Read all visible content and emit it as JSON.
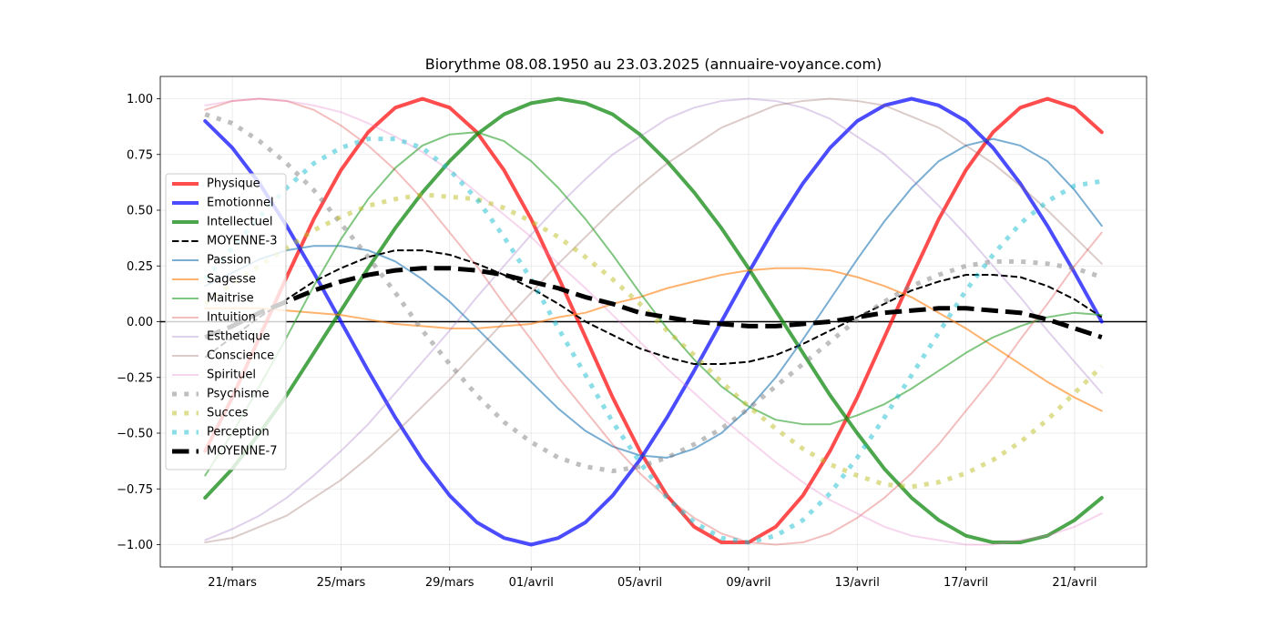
{
  "chart_data": {
    "type": "line",
    "title": "Biorythme 08.08.1950 au 23.03.2025 (annuaire-voyance.com)",
    "categories": [
      null,
      "21/mars",
      null,
      null,
      null,
      "25/mars",
      null,
      null,
      null,
      "29/mars",
      null,
      null,
      "01/avril",
      null,
      null,
      null,
      "05/avril",
      null,
      null,
      null,
      "09/avril",
      null,
      null,
      null,
      "13/avril",
      null,
      null,
      null,
      "17/avril",
      null,
      null,
      null,
      "21/avril",
      null
    ],
    "ylim": [
      -1.1,
      1.1
    ],
    "yticks": [
      {
        "value": -1,
        "label": "−1.00"
      },
      {
        "value": -0.75,
        "label": "−0.75"
      },
      {
        "value": -0.5,
        "label": "−0.50"
      },
      {
        "value": -0.25,
        "label": "−0.25"
      },
      {
        "value": 0,
        "label": "0.00"
      },
      {
        "value": 0.25,
        "label": "0.25"
      },
      {
        "value": 0.5,
        "label": "0.50"
      },
      {
        "value": 0.75,
        "label": "0.75"
      },
      {
        "value": 1,
        "label": "1.00"
      }
    ],
    "grid": true,
    "hline": 0,
    "legend": "center left",
    "series": [
      {
        "name": "Physique",
        "color": "#ff0000",
        "opacity": 0.7,
        "width": 4,
        "dash": "solid",
        "values": [
          -0.58,
          -0.34,
          -0.07,
          0.2,
          0.46,
          0.68,
          0.85,
          0.96,
          1,
          0.96,
          0.85,
          0.68,
          0.46,
          0.2,
          -0.07,
          -0.34,
          -0.58,
          -0.78,
          -0.92,
          -0.99,
          -0.99,
          -0.92,
          -0.78,
          -0.58,
          -0.34,
          -0.07,
          0.2,
          0.46,
          0.68,
          0.85,
          0.96,
          1,
          0.96,
          0.85
        ]
      },
      {
        "name": "Emotionnel",
        "color": "#0000ff",
        "opacity": 0.7,
        "width": 4,
        "dash": "solid",
        "values": [
          0.9,
          0.78,
          0.62,
          0.43,
          0.22,
          0,
          -0.22,
          -0.43,
          -0.62,
          -0.78,
          -0.9,
          -0.97,
          -1,
          -0.97,
          -0.9,
          -0.78,
          -0.62,
          -0.43,
          -0.22,
          0,
          0.22,
          0.43,
          0.62,
          0.78,
          0.9,
          0.97,
          1,
          0.97,
          0.9,
          0.78,
          0.62,
          0.43,
          0.22,
          0
        ]
      },
      {
        "name": "Intellectuel",
        "color": "#008000",
        "opacity": 0.7,
        "width": 4,
        "dash": "solid",
        "values": [
          -0.79,
          -0.66,
          -0.5,
          -0.33,
          -0.14,
          0.05,
          0.24,
          0.42,
          0.58,
          0.72,
          0.84,
          0.93,
          0.98,
          1,
          0.98,
          0.93,
          0.84,
          0.72,
          0.58,
          0.42,
          0.24,
          0.05,
          -0.14,
          -0.33,
          -0.5,
          -0.66,
          -0.79,
          -0.89,
          -0.96,
          -0.99,
          -0.99,
          -0.96,
          -0.89,
          -0.79
        ]
      },
      {
        "name": "MOYENNE-3",
        "color": "#000000",
        "opacity": 1,
        "width": 2,
        "dash": "dashed",
        "values": [
          -0.16,
          -0.07,
          0.02,
          0.1,
          0.18,
          0.24,
          0.29,
          0.32,
          0.32,
          0.3,
          0.26,
          0.21,
          0.15,
          0.08,
          0,
          -0.06,
          -0.12,
          -0.16,
          -0.19,
          -0.19,
          -0.18,
          -0.15,
          -0.1,
          -0.04,
          0.02,
          0.08,
          0.14,
          0.18,
          0.21,
          0.21,
          0.2,
          0.16,
          0.1,
          0.02
        ]
      },
      {
        "name": "Passion",
        "color": "#1f77b4",
        "opacity": 0.6,
        "width": 2,
        "dash": "solid",
        "values": [
          0.16,
          0.22,
          0.28,
          0.32,
          0.34,
          0.34,
          0.32,
          0.27,
          0.19,
          0.09,
          -0.03,
          -0.15,
          -0.27,
          -0.39,
          -0.49,
          -0.56,
          -0.6,
          -0.61,
          -0.57,
          -0.5,
          -0.39,
          -0.25,
          -0.08,
          0.1,
          0.28,
          0.45,
          0.6,
          0.72,
          0.79,
          0.82,
          0.79,
          0.72,
          0.59,
          0.43
        ]
      },
      {
        "name": "Sagesse",
        "color": "#ff7f0e",
        "opacity": 0.6,
        "width": 2,
        "dash": "solid",
        "values": [
          0.06,
          0.06,
          0.06,
          0.05,
          0.04,
          0.03,
          0.01,
          -0.01,
          -0.02,
          -0.03,
          -0.03,
          -0.02,
          -0.01,
          0.02,
          0.04,
          0.08,
          0.11,
          0.15,
          0.18,
          0.21,
          0.23,
          0.24,
          0.24,
          0.23,
          0.2,
          0.16,
          0.11,
          0.04,
          -0.03,
          -0.11,
          -0.19,
          -0.27,
          -0.34,
          -0.4
        ]
      },
      {
        "name": "Maitrise",
        "color": "#2ca02c",
        "opacity": 0.6,
        "width": 2,
        "dash": "solid",
        "values": [
          -0.69,
          -0.5,
          -0.29,
          -0.07,
          0.16,
          0.37,
          0.55,
          0.69,
          0.79,
          0.84,
          0.85,
          0.81,
          0.72,
          0.6,
          0.46,
          0.3,
          0.13,
          -0.03,
          -0.17,
          -0.29,
          -0.38,
          -0.44,
          -0.46,
          -0.46,
          -0.42,
          -0.37,
          -0.3,
          -0.22,
          -0.14,
          -0.07,
          -0.02,
          0.02,
          0.04,
          0.03
        ]
      },
      {
        "name": "Intuition",
        "color": "#d62728",
        "opacity": 0.3,
        "width": 2,
        "dash": "solid",
        "values": [
          0.95,
          0.99,
          1,
          0.99,
          0.95,
          0.88,
          0.79,
          0.68,
          0.55,
          0.4,
          0.25,
          0.08,
          -0.08,
          -0.25,
          -0.4,
          -0.55,
          -0.68,
          -0.79,
          -0.88,
          -0.95,
          -0.99,
          -1,
          -0.99,
          -0.95,
          -0.88,
          -0.79,
          -0.68,
          -0.55,
          -0.4,
          -0.25,
          -0.08,
          0.08,
          0.25,
          0.4
        ]
      },
      {
        "name": "Esthetique",
        "color": "#9467bd",
        "opacity": 0.3,
        "width": 2,
        "dash": "solid",
        "values": [
          -0.98,
          -0.93,
          -0.87,
          -0.79,
          -0.69,
          -0.58,
          -0.46,
          -0.32,
          -0.18,
          -0.04,
          0.11,
          0.25,
          0.39,
          0.52,
          0.64,
          0.75,
          0.83,
          0.91,
          0.96,
          0.99,
          1,
          0.99,
          0.96,
          0.91,
          0.83,
          0.75,
          0.64,
          0.52,
          0.39,
          0.25,
          0.11,
          -0.04,
          -0.18,
          -0.32
        ]
      },
      {
        "name": "Conscience",
        "color": "#8c564b",
        "opacity": 0.3,
        "width": 2,
        "dash": "solid",
        "values": [
          -0.99,
          -0.97,
          -0.92,
          -0.87,
          -0.79,
          -0.71,
          -0.61,
          -0.5,
          -0.38,
          -0.26,
          -0.13,
          0,
          0.13,
          0.26,
          0.38,
          0.5,
          0.61,
          0.71,
          0.79,
          0.87,
          0.92,
          0.97,
          0.99,
          1,
          0.99,
          0.97,
          0.92,
          0.87,
          0.79,
          0.71,
          0.61,
          0.5,
          0.38,
          0.26
        ]
      },
      {
        "name": "Spirituel",
        "color": "#e377c2",
        "opacity": 0.3,
        "width": 2,
        "dash": "solid",
        "values": [
          0.97,
          0.99,
          1,
          0.99,
          0.97,
          0.94,
          0.89,
          0.83,
          0.76,
          0.68,
          0.58,
          0.48,
          0.38,
          0.26,
          0.15,
          0.03,
          -0.09,
          -0.21,
          -0.32,
          -0.43,
          -0.53,
          -0.63,
          -0.72,
          -0.8,
          -0.86,
          -0.92,
          -0.96,
          -0.98,
          -1,
          -1,
          -0.98,
          -0.96,
          -0.92,
          -0.86
        ]
      },
      {
        "name": "Psychisme",
        "color": "#7f7f7f",
        "opacity": 0.5,
        "width": 5,
        "dash": "dotted",
        "values": [
          0.93,
          0.89,
          0.81,
          0.71,
          0.59,
          0.44,
          0.29,
          0.13,
          -0.04,
          -0.19,
          -0.33,
          -0.45,
          -0.54,
          -0.61,
          -0.65,
          -0.67,
          -0.65,
          -0.61,
          -0.55,
          -0.48,
          -0.39,
          -0.29,
          -0.19,
          -0.09,
          0.01,
          0.09,
          0.16,
          0.21,
          0.25,
          0.27,
          0.27,
          0.26,
          0.24,
          0.2
        ]
      },
      {
        "name": "Succes",
        "color": "#bcbd22",
        "opacity": 0.5,
        "width": 5,
        "dash": "dotted",
        "values": [
          0.08,
          0.17,
          0.25,
          0.33,
          0.41,
          0.47,
          0.52,
          0.55,
          0.57,
          0.56,
          0.55,
          0.51,
          0.45,
          0.38,
          0.29,
          0.19,
          0.08,
          -0.04,
          -0.15,
          -0.27,
          -0.38,
          -0.48,
          -0.57,
          -0.64,
          -0.69,
          -0.73,
          -0.74,
          -0.72,
          -0.68,
          -0.62,
          -0.54,
          -0.44,
          -0.32,
          -0.2
        ]
      },
      {
        "name": "Perception",
        "color": "#17becf",
        "opacity": 0.5,
        "width": 5,
        "dash": "dotted",
        "values": [
          0.19,
          0.33,
          0.47,
          0.6,
          0.71,
          0.78,
          0.82,
          0.82,
          0.78,
          0.68,
          0.55,
          0.38,
          0.19,
          -0.03,
          -0.24,
          -0.45,
          -0.63,
          -0.79,
          -0.9,
          -0.97,
          -0.99,
          -0.96,
          -0.89,
          -0.77,
          -0.61,
          -0.43,
          -0.24,
          -0.05,
          0.14,
          0.3,
          0.44,
          0.54,
          0.61,
          0.63
        ]
      },
      {
        "name": "MOYENNE-7",
        "color": "#000000",
        "opacity": 1,
        "width": 5,
        "dash": "dashed",
        "values": [
          -0.07,
          -0.02,
          0.04,
          0.09,
          0.14,
          0.18,
          0.21,
          0.23,
          0.24,
          0.24,
          0.23,
          0.21,
          0.18,
          0.15,
          0.11,
          0.08,
          0.04,
          0.02,
          0,
          -0.01,
          -0.02,
          -0.02,
          -0.01,
          0,
          0.02,
          0.04,
          0.05,
          0.06,
          0.06,
          0.05,
          0.04,
          0.01,
          -0.03,
          -0.07
        ]
      }
    ]
  }
}
